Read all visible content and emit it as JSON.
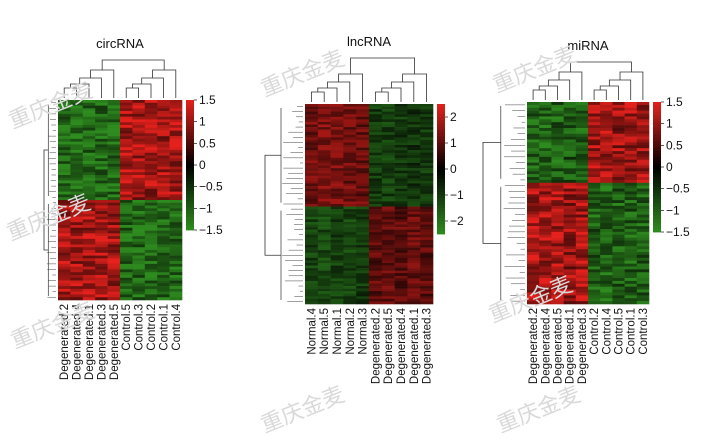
{
  "watermark": "重庆金麦",
  "colors": {
    "low": "#2e8b1f",
    "mid": "#000000",
    "high": "#e4211c"
  },
  "chart_data": [
    {
      "type": "heatmap",
      "title": "circRNA",
      "columns": [
        "Degenerated.2",
        "Degenerated.4",
        "Degenerated.1",
        "Degenerated.3",
        "Degenerated.5",
        "Control.5",
        "Control.3",
        "Control.2",
        "Control.1",
        "Control.4"
      ],
      "row_clusters": [
        {
          "rows": 36,
          "pattern": [
            -1.1,
            -1.1,
            -1.1,
            -1.1,
            -1.1,
            1.1,
            1.1,
            1.1,
            1.1,
            1.1
          ]
        },
        {
          "rows": 36,
          "pattern": [
            1.1,
            1.1,
            1.1,
            1.1,
            1.1,
            -1.1,
            -1.1,
            -1.1,
            -1.1,
            -1.1
          ]
        }
      ],
      "legend_ticks": [
        "1.5",
        "1",
        "0.5",
        "0",
        "−0.5",
        "−1",
        "−1.5"
      ],
      "legend_range": [
        -1.5,
        1.5
      ]
    },
    {
      "type": "heatmap",
      "title": "lncRNA",
      "columns": [
        "Normal.4",
        "Normal.5",
        "Normal.1",
        "Normal.2",
        "Normal.3",
        "Degenerated.2",
        "Degenerated.5",
        "Degenerated.4",
        "Degenerated.1",
        "Degenerated.3"
      ],
      "row_clusters": [
        {
          "rows": 40,
          "pattern": [
            1.2,
            1.4,
            1.3,
            1.2,
            1.1,
            -1.0,
            -1.1,
            -1.0,
            -0.9,
            -1.0
          ]
        },
        {
          "rows": 38,
          "pattern": [
            -1.2,
            -1.3,
            -1.1,
            -1.2,
            -1.0,
            1.0,
            1.1,
            1.0,
            1.1,
            1.0
          ]
        }
      ],
      "legend_ticks": [
        "2",
        "1",
        "0",
        "−1",
        "−2"
      ],
      "legend_range": [
        -2.5,
        2.5
      ]
    },
    {
      "type": "heatmap",
      "title": "miRNA",
      "columns": [
        "Degenerated.2",
        "Degenerated.4",
        "Degenerated.5",
        "Degenerated.1",
        "Degenerated.3",
        "Control.2",
        "Control.4",
        "Control.5",
        "Control.1",
        "Control.3"
      ],
      "row_clusters": [
        {
          "rows": 28,
          "pattern": [
            -1.0,
            -1.1,
            -1.0,
            -0.9,
            -1.0,
            1.1,
            1.1,
            1.0,
            1.1,
            1.0
          ]
        },
        {
          "rows": 42,
          "pattern": [
            1.1,
            1.1,
            1.1,
            1.0,
            1.1,
            -1.0,
            -1.1,
            -1.0,
            -1.0,
            -1.0
          ]
        }
      ],
      "legend_ticks": [
        "1.5",
        "1",
        "0.5",
        "0",
        "−0.5",
        "−1",
        "−1.5"
      ],
      "legend_range": [
        -1.5,
        1.5
      ]
    }
  ]
}
